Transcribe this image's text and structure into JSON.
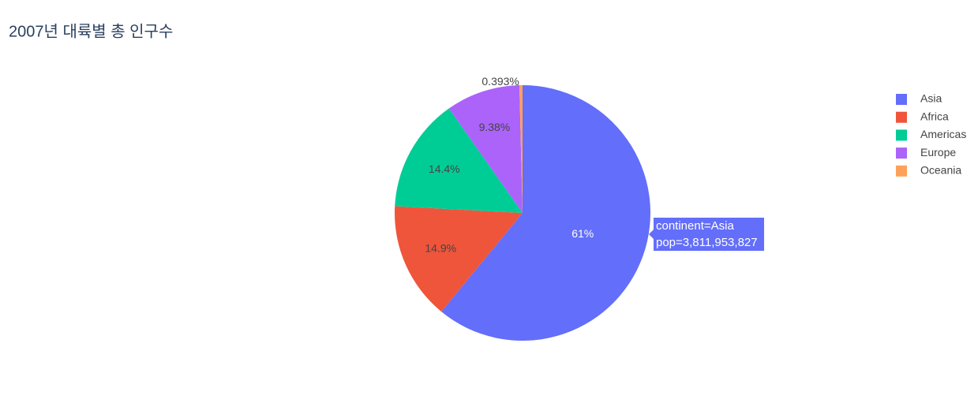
{
  "chart_data": {
    "type": "pie",
    "title": "2007년 대륙별 총 인구수",
    "categories": [
      "Asia",
      "Africa",
      "Americas",
      "Europe",
      "Oceania"
    ],
    "values": [
      61,
      14.9,
      14.4,
      9.38,
      0.393
    ],
    "value_labels": [
      "61%",
      "14.9%",
      "14.4%",
      "9.38%",
      "0.393%"
    ],
    "colors": [
      "#636efa",
      "#EF553B",
      "#00cc96",
      "#ab63fa",
      "#FFA15A"
    ],
    "legend": "top-right",
    "hover": {
      "lines": [
        "continent=Asia",
        "pop=3,811,953,827"
      ]
    }
  }
}
